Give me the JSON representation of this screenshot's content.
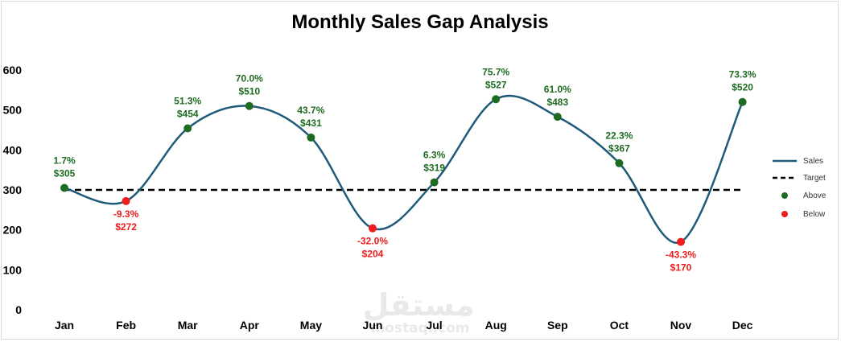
{
  "chart_data": {
    "type": "line",
    "title": "Monthly Sales Gap Analysis",
    "xlabel": "",
    "ylabel": "",
    "categories": [
      "Jan",
      "Feb",
      "Mar",
      "Apr",
      "May",
      "Jun",
      "Jul",
      "Aug",
      "Sep",
      "Oct",
      "Nov",
      "Dec"
    ],
    "ylim": [
      0,
      600
    ],
    "yticks": [
      "0",
      "100",
      "200",
      "300",
      "400",
      "500",
      "600"
    ],
    "grid": false,
    "legend_position": "right",
    "series": [
      {
        "name": "Sales",
        "values": [
          305,
          272,
          454,
          510,
          431,
          204,
          319,
          527,
          483,
          367,
          170,
          520
        ],
        "color": "#1f5a7a"
      },
      {
        "name": "Target",
        "values": [
          300,
          300,
          300,
          300,
          300,
          300,
          300,
          300,
          300,
          300,
          300,
          300
        ],
        "color": "#000000"
      }
    ],
    "markers": [
      {
        "name": "Above",
        "color": "#1e6b22"
      },
      {
        "name": "Below",
        "color": "#ee1c1c"
      }
    ],
    "data_labels": [
      {
        "pct": "1.7%",
        "value": "$305",
        "status": "above"
      },
      {
        "pct": "-9.3%",
        "value": "$272",
        "status": "below"
      },
      {
        "pct": "51.3%",
        "value": "$454",
        "status": "above"
      },
      {
        "pct": "70.0%",
        "value": "$510",
        "status": "above"
      },
      {
        "pct": "43.7%",
        "value": "$431",
        "status": "above"
      },
      {
        "pct": "-32.0%",
        "value": "$204",
        "status": "below"
      },
      {
        "pct": "6.3%",
        "value": "$319",
        "status": "above"
      },
      {
        "pct": "75.7%",
        "value": "$527",
        "status": "above"
      },
      {
        "pct": "61.0%",
        "value": "$483",
        "status": "above"
      },
      {
        "pct": "22.3%",
        "value": "$367",
        "status": "above"
      },
      {
        "pct": "-43.3%",
        "value": "$170",
        "status": "below"
      },
      {
        "pct": "73.3%",
        "value": "$520",
        "status": "above"
      }
    ]
  },
  "watermark": {
    "text_arabic": "مستقل",
    "text_latin": "mostaql.com"
  }
}
